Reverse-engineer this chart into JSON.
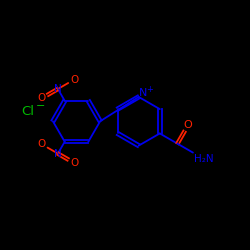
{
  "bg": "#000000",
  "blue": "#0000ee",
  "green": "#00bb00",
  "red": "#ff2200",
  "lw": 1.3,
  "figsize": [
    2.5,
    2.5
  ],
  "dpi": 100,
  "xlim": [
    0,
    10
  ],
  "ylim": [
    0,
    10
  ]
}
